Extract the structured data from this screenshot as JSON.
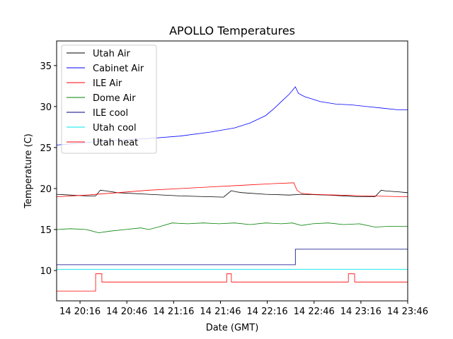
{
  "chart_data": {
    "type": "line",
    "title": "APOLLO Temperatures",
    "xlabel": "Date (GMT)",
    "ylabel": "Temperature (C)",
    "x_unit": "minutes after 14 20:00",
    "xlim": [
      1,
      226
    ],
    "ylim": [
      6.3,
      38.0
    ],
    "xticks": [
      {
        "value": 16,
        "label": "14 20:16"
      },
      {
        "value": 46,
        "label": "14 20:46"
      },
      {
        "value": 76,
        "label": "14 21:16"
      },
      {
        "value": 106,
        "label": "14 21:46"
      },
      {
        "value": 136,
        "label": "14 22:16"
      },
      {
        "value": 166,
        "label": "14 22:46"
      },
      {
        "value": 196,
        "label": "14 23:16"
      },
      {
        "value": 226,
        "label": "14 23:46"
      }
    ],
    "yticks": [
      10,
      15,
      20,
      25,
      30,
      35
    ],
    "legend_position": "upper-left",
    "series": [
      {
        "name": "Utah Air",
        "color": "#000000",
        "x": [
          1,
          10,
          20,
          26,
          29,
          33,
          40,
          60,
          80,
          100,
          108,
          113,
          116,
          120,
          135,
          150,
          158,
          175,
          195,
          205,
          209,
          212,
          220,
          226
        ],
        "y": [
          19.3,
          19.2,
          19.1,
          19.1,
          19.8,
          19.7,
          19.5,
          19.3,
          19.1,
          19.0,
          18.95,
          19.75,
          19.6,
          19.5,
          19.3,
          19.2,
          19.3,
          19.2,
          19.0,
          19.0,
          19.8,
          19.7,
          19.6,
          19.5
        ]
      },
      {
        "name": "Cabinet Air",
        "color": "#0000ff",
        "x": [
          1,
          20,
          40,
          60,
          80,
          100,
          115,
          125,
          135,
          140,
          145,
          150,
          154,
          156,
          160,
          170,
          180,
          190,
          200,
          210,
          220,
          226
        ],
        "y": [
          25.3,
          25.6,
          25.9,
          26.1,
          26.4,
          26.9,
          27.4,
          28.0,
          28.9,
          29.7,
          30.6,
          31.5,
          32.4,
          31.6,
          31.2,
          30.6,
          30.3,
          30.2,
          30.0,
          29.8,
          29.6,
          29.6
        ]
      },
      {
        "name": "ILE Air",
        "color": "#ff0000",
        "x": [
          1,
          20,
          40,
          60,
          80,
          100,
          120,
          140,
          153,
          155,
          158,
          165,
          180,
          200,
          226
        ],
        "y": [
          19.0,
          19.2,
          19.5,
          19.8,
          20.0,
          20.2,
          20.4,
          20.6,
          20.7,
          19.8,
          19.4,
          19.3,
          19.2,
          19.1,
          19.0
        ]
      },
      {
        "name": "Dome Air",
        "color": "#008000",
        "x": [
          1,
          10,
          20,
          28,
          35,
          45,
          55,
          60,
          66,
          75,
          85,
          95,
          105,
          115,
          125,
          135,
          145,
          152,
          158,
          165,
          175,
          185,
          195,
          205,
          215,
          226
        ],
        "y": [
          15.0,
          15.1,
          15.0,
          14.6,
          14.8,
          15.0,
          15.2,
          15.0,
          15.3,
          15.8,
          15.7,
          15.8,
          15.7,
          15.8,
          15.6,
          15.8,
          15.7,
          15.8,
          15.5,
          15.7,
          15.8,
          15.6,
          15.7,
          15.3,
          15.4,
          15.4
        ]
      },
      {
        "name": "ILE cool",
        "color": "#00008b",
        "x": [
          1,
          154,
          154,
          226
        ],
        "y": [
          10.7,
          10.7,
          12.6,
          12.6
        ]
      },
      {
        "name": "Utah cool",
        "color": "#00e5ee",
        "x": [
          1,
          226
        ],
        "y": [
          10.15,
          10.15
        ]
      },
      {
        "name": "Utah heat",
        "color": "#ff0000",
        "x": [
          1,
          26,
          26,
          30,
          30,
          110,
          110,
          113,
          113,
          188,
          188,
          192,
          192,
          226
        ],
        "y": [
          7.5,
          7.5,
          9.6,
          9.6,
          8.6,
          8.6,
          9.6,
          9.6,
          8.6,
          8.6,
          9.6,
          9.6,
          8.6,
          8.6
        ]
      }
    ]
  }
}
